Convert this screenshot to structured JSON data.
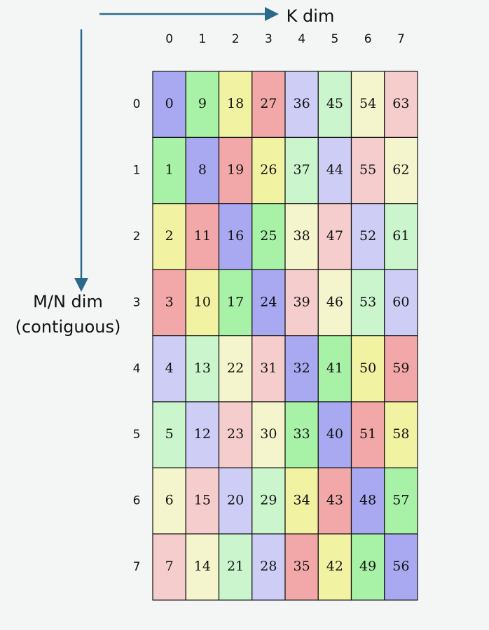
{
  "k_label": "K dim",
  "m_label": "M/N dim",
  "m_sublabel": "(contiguous)",
  "col_headers": [
    "0",
    "1",
    "2",
    "3",
    "4",
    "5",
    "6",
    "7"
  ],
  "row_headers": [
    "0",
    "1",
    "2",
    "3",
    "4",
    "5",
    "6",
    "7"
  ],
  "palette": [
    "#a9a9f2",
    "#a8f2a8",
    "#f2f2a3",
    "#f2a8a8",
    "#cdcdf5",
    "#caf5cd",
    "#f5f5cd",
    "#f5cdcd"
  ],
  "rows": [
    [
      0,
      9,
      18,
      27,
      36,
      45,
      54,
      63
    ],
    [
      1,
      8,
      19,
      26,
      37,
      44,
      55,
      62
    ],
    [
      2,
      11,
      16,
      25,
      38,
      47,
      52,
      61
    ],
    [
      3,
      10,
      17,
      24,
      39,
      46,
      53,
      60
    ],
    [
      4,
      13,
      22,
      31,
      32,
      41,
      50,
      59
    ],
    [
      5,
      12,
      23,
      30,
      33,
      40,
      51,
      58
    ],
    [
      6,
      15,
      20,
      29,
      34,
      43,
      48,
      57
    ],
    [
      7,
      14,
      21,
      28,
      35,
      42,
      49,
      56
    ]
  ]
}
